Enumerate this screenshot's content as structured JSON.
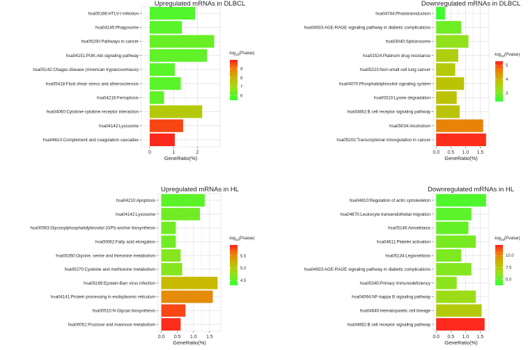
{
  "chart_data": [
    {
      "type": "bar",
      "orientation": "horizontal",
      "title": "Upregulated mRNAs in DLBCL",
      "xlabel": "GeneRatio(%)",
      "xlim": [
        -0.35,
        2.95
      ],
      "xticks": [
        0,
        1,
        2
      ],
      "xtick_labels": [
        "0",
        "1",
        "2"
      ],
      "categories": [
        "hsa05166:HTLV-I infection",
        "hsa04145:Phagosome",
        "hsa05200:Pathways in cancer",
        "hsa04151:PI3K-Akt signaling pathway",
        "hsa05142:Chagas disease (American trypanosomiasis)",
        "hsa05418:Fluid shear stress and atherosclerosis",
        "hsa04216:Ferroptosis",
        "hsa04060:Cytokine-cytokine receptor interaction",
        "hsa04142:Lysosome",
        "hsa04610:Complement and coagulation cascades"
      ],
      "values": [
        1.9,
        1.35,
        2.7,
        2.4,
        1.05,
        1.3,
        0.6,
        2.2,
        1.4,
        1.05
      ],
      "color_values": [
        5.9,
        6.0,
        6.2,
        6.1,
        6.0,
        6.0,
        6.1,
        7.5,
        9.6,
        9.9
      ],
      "legend": {
        "title": "-log10(Pvalue)",
        "title_base": "-log",
        "title_sub": "10",
        "title_rest": "(Pvalue)",
        "min": 5.5,
        "max": 10.0,
        "ticks": [
          6,
          7,
          8,
          9
        ],
        "tick_labels": [
          "6",
          "7",
          "8",
          "9"
        ],
        "position": "right"
      }
    },
    {
      "type": "bar",
      "orientation": "horizontal",
      "title": "Downregulated mRNAs in DLBCL",
      "xlabel": "GeneRatio(%)",
      "xlim": [
        -0.1,
        1.8
      ],
      "xticks": [
        0,
        0.5,
        1,
        1.5
      ],
      "xtick_labels": [
        "0.0",
        "0.5",
        "1.0",
        "1.5"
      ],
      "categories": [
        "hsa04744:Phototransduction",
        "hsa04933:AGE-RAGE signaling pathway in diabetic complications",
        "hsa03040:Spliceosome",
        "hsa01524:Platinum drug resistance",
        "hsa05223:Non-small cell lung cancer",
        "hsa04070:Phosphatidylinositol signaling system",
        "hsa00310:Lysine degradation",
        "hsa04662:B cell receptor signaling pathway",
        "hsa05034:Alcoholism",
        "hsa05202:Transcriptional misregulation in cancer"
      ],
      "values": [
        0.3,
        0.85,
        1.1,
        0.75,
        0.65,
        0.95,
        0.7,
        0.8,
        1.6,
        1.7
      ],
      "color_values": [
        2.5,
        2.9,
        3.2,
        3.6,
        3.7,
        3.8,
        3.8,
        3.8,
        4.6,
        5.2
      ],
      "legend": {
        "title": "-log10(Pvalue)",
        "title_base": "-log",
        "title_sub": "10",
        "title_rest": "(Pvalue)",
        "min": 2.4,
        "max": 5.3,
        "ticks": [
          3,
          4,
          5
        ],
        "tick_labels": [
          "3",
          "4",
          "5"
        ],
        "position": "right"
      }
    },
    {
      "type": "bar",
      "orientation": "horizontal",
      "title": "Upregulated mRNAs in HL",
      "xlabel": "GeneRatio(%)",
      "xlim": [
        -0.1,
        1.85
      ],
      "xticks": [
        0,
        0.5,
        1,
        1.5
      ],
      "xtick_labels": [
        "0.0",
        "0.5",
        "1.0",
        "1.5"
      ],
      "categories": [
        "hsa04210:Apoptosis",
        "hsa04142:Lysosome",
        "hsa00563:Glycosylphosphatidylinositol (GPI)-anchor biosynthesis",
        "hsa00062:Fatty acid elongation",
        "hsa00260:Glycine, serine and threonine metabolism",
        "hsa00270:Cysteine and methionine metabolism",
        "hsa05169:Epstein-Barr virus infection",
        "hsa04141:Protein processing in endoplasmic reticulum",
        "hsa00510:N-Glycan biosynthesis",
        "hsa00051:Fructose and mannose metabolism"
      ],
      "values": [
        1.35,
        1.2,
        0.45,
        0.45,
        0.6,
        0.65,
        1.75,
        1.6,
        0.75,
        0.6
      ],
      "color_values": [
        4.5,
        4.6,
        4.6,
        4.6,
        4.7,
        4.7,
        5.2,
        5.5,
        5.8,
        5.9
      ],
      "legend": {
        "title": "-log10(Pvalue)",
        "title_base": "-log",
        "title_sub": "10",
        "title_rest": "(Pvalue)",
        "min": 4.3,
        "max": 5.95,
        "ticks": [
          4.5,
          5.0,
          5.5
        ],
        "tick_labels": [
          "4.5",
          "5.0",
          "5.5"
        ],
        "position": "right"
      }
    },
    {
      "type": "bar",
      "orientation": "horizontal",
      "title": "Downregulated mRNAs in HL",
      "xlabel": "GeneRatio(%)",
      "xlim": [
        -0.1,
        1.8
      ],
      "xticks": [
        0,
        0.5,
        1,
        1.5
      ],
      "xtick_labels": [
        "0.0",
        "0.5",
        "1.0",
        "1.5"
      ],
      "categories": [
        "hsa04810:Regulation of actin cytoskeleton",
        "hsa04670:Leukocyte transendothelial migration",
        "hsa05146:Amoebiasis",
        "hsa04611:Platelet activation",
        "hsa05134:Legionellosis",
        "hsa04933:AGE-RAGE signaling pathway in diabetic complications",
        "hsa05340:Primary immunodeficiency",
        "hsa04064:NF-kappa B signaling pathway",
        "hsa04640:Hematopoietic cell lineage",
        "hsa04662:B cell receptor signaling pathway"
      ],
      "values": [
        1.7,
        1.2,
        1.1,
        1.35,
        0.85,
        1.2,
        0.7,
        1.35,
        1.55,
        1.65
      ],
      "color_values": [
        4.5,
        4.8,
        5.0,
        5.5,
        5.6,
        5.8,
        6.0,
        6.5,
        7.5,
        12.0
      ],
      "legend": {
        "title": "-log10(Pvalue)",
        "title_base": "-log",
        "title_sub": "10",
        "title_rest": "(Pvalue)",
        "min": 3.8,
        "max": 12.2,
        "ticks": [
          5,
          7.5,
          10
        ],
        "tick_labels": [
          "5.0",
          "7.5",
          "10.0"
        ],
        "position": "right"
      }
    }
  ]
}
